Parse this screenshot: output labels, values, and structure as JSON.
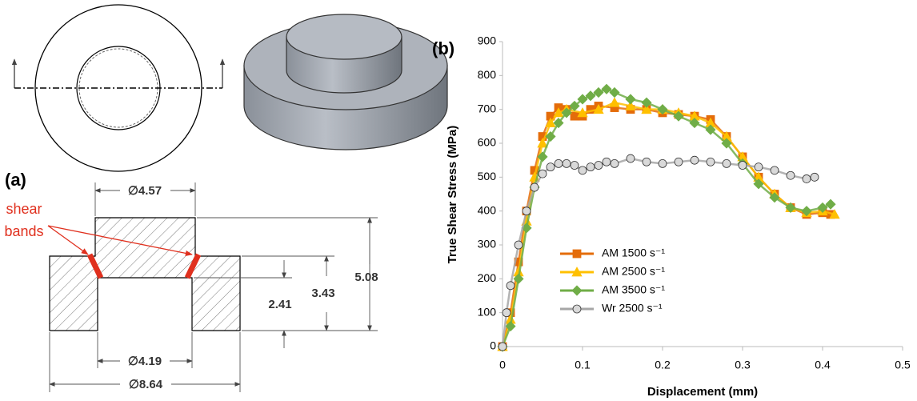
{
  "drawing": {
    "label": "(a)",
    "annotation_lines": [
      "shear",
      "bands"
    ],
    "dimensions": {
      "boss_diameter": "∅4.57",
      "hole_depth": "2.41",
      "base_height": "3.43",
      "total_height": "5.08",
      "hole_diameter": "∅4.19",
      "outer_diameter": "∅8.64"
    }
  },
  "chart_data": {
    "type": "line",
    "title": "(b)",
    "x_label": "Displacement (mm)",
    "y_label": "True Shear Stress (MPa)",
    "xlim": [
      0,
      0.5
    ],
    "xticks": [
      0,
      0.1,
      0.2,
      0.3,
      0.4,
      0.5
    ],
    "ylim": [
      0,
      900
    ],
    "yticks": [
      0,
      100,
      200,
      300,
      400,
      500,
      600,
      700,
      800,
      900
    ],
    "series": [
      {
        "name": "AM 1500 s⁻¹",
        "color": "#e46c0a",
        "marker": "square",
        "x": [
          0,
          0.01,
          0.02,
          0.03,
          0.04,
          0.05,
          0.06,
          0.07,
          0.08,
          0.09,
          0.1,
          0.11,
          0.12,
          0.14,
          0.16,
          0.18,
          0.2,
          0.22,
          0.24,
          0.26,
          0.28,
          0.3,
          0.32,
          0.34,
          0.36,
          0.38,
          0.4,
          0.41
        ],
        "values": [
          0,
          100,
          250,
          400,
          520,
          620,
          680,
          705,
          700,
          680,
          680,
          700,
          710,
          705,
          700,
          700,
          690,
          685,
          680,
          670,
          620,
          560,
          500,
          450,
          410,
          390,
          395,
          390
        ]
      },
      {
        "name": "AM 2500 s⁻¹",
        "color": "#ffc000",
        "marker": "triangle",
        "x": [
          0,
          0.01,
          0.02,
          0.03,
          0.04,
          0.05,
          0.06,
          0.07,
          0.08,
          0.1,
          0.12,
          0.14,
          0.16,
          0.18,
          0.2,
          0.22,
          0.24,
          0.26,
          0.28,
          0.3,
          0.32,
          0.34,
          0.36,
          0.38,
          0.4,
          0.415
        ],
        "values": [
          0,
          80,
          220,
          370,
          500,
          600,
          660,
          690,
          700,
          690,
          700,
          720,
          710,
          700,
          700,
          690,
          680,
          660,
          620,
          560,
          500,
          450,
          410,
          395,
          400,
          390
        ]
      },
      {
        "name": "AM 3500 s⁻¹",
        "color": "#70ad47",
        "marker": "diamond",
        "x": [
          0,
          0.01,
          0.02,
          0.03,
          0.04,
          0.05,
          0.06,
          0.07,
          0.08,
          0.09,
          0.1,
          0.11,
          0.12,
          0.13,
          0.14,
          0.16,
          0.18,
          0.2,
          0.22,
          0.24,
          0.26,
          0.28,
          0.3,
          0.32,
          0.34,
          0.36,
          0.38,
          0.4,
          0.41
        ],
        "values": [
          0,
          60,
          200,
          350,
          470,
          560,
          620,
          660,
          690,
          710,
          730,
          740,
          750,
          760,
          750,
          730,
          720,
          700,
          680,
          660,
          640,
          600,
          540,
          480,
          440,
          410,
          400,
          410,
          420
        ]
      },
      {
        "name": "Wr 2500 s⁻¹",
        "color": "#a6a6a6",
        "marker": "circle",
        "x": [
          0,
          0.005,
          0.01,
          0.02,
          0.03,
          0.04,
          0.05,
          0.06,
          0.07,
          0.08,
          0.09,
          0.1,
          0.11,
          0.12,
          0.13,
          0.14,
          0.16,
          0.18,
          0.2,
          0.22,
          0.24,
          0.26,
          0.28,
          0.3,
          0.32,
          0.34,
          0.36,
          0.38,
          0.39
        ],
        "values": [
          0,
          100,
          180,
          300,
          400,
          470,
          510,
          530,
          540,
          540,
          535,
          520,
          530,
          535,
          545,
          540,
          555,
          545,
          540,
          545,
          550,
          545,
          540,
          535,
          530,
          520,
          505,
          495,
          500
        ]
      }
    ]
  }
}
